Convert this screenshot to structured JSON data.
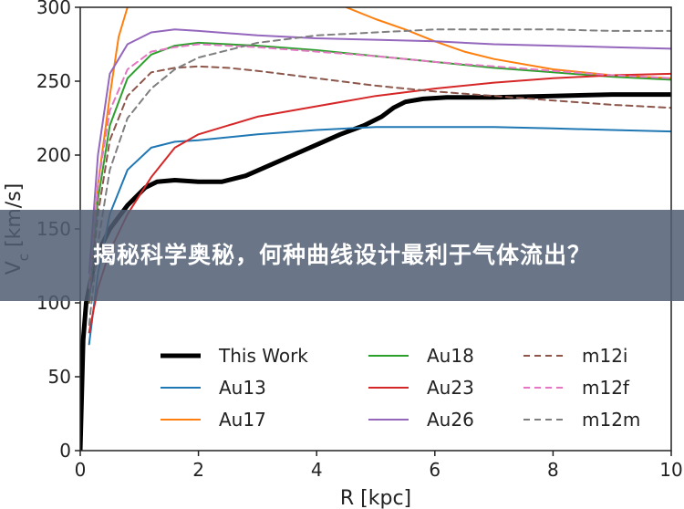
{
  "banner": {
    "title": "揭秘科学奥秘，何种曲线设计最利于气体流出？"
  },
  "chart_data": {
    "type": "line",
    "xlabel": "R [kpc]",
    "ylabel": "V_c [km/s]",
    "xlim": [
      0,
      10
    ],
    "ylim": [
      0,
      300
    ],
    "xticks": [
      0,
      2,
      4,
      6,
      8,
      10
    ],
    "yticks": [
      0,
      50,
      100,
      150,
      200,
      250,
      300
    ],
    "legend_placement": "lower-right",
    "series": [
      {
        "name": "This Work",
        "color": "#000000",
        "dash": "solid",
        "width": 5,
        "points": [
          [
            0,
            0
          ],
          [
            0.05,
            75
          ],
          [
            0.1,
            100
          ],
          [
            0.2,
            120
          ],
          [
            0.35,
            138
          ],
          [
            0.5,
            150
          ],
          [
            0.8,
            166
          ],
          [
            1.1,
            178
          ],
          [
            1.3,
            182
          ],
          [
            1.6,
            183
          ],
          [
            2.0,
            182
          ],
          [
            2.4,
            182
          ],
          [
            2.8,
            186
          ],
          [
            3.2,
            193
          ],
          [
            3.6,
            200
          ],
          [
            4.0,
            207
          ],
          [
            4.4,
            214
          ],
          [
            4.8,
            220
          ],
          [
            5.1,
            226
          ],
          [
            5.3,
            232
          ],
          [
            5.5,
            236
          ],
          [
            5.8,
            238
          ],
          [
            6.2,
            239
          ],
          [
            7.0,
            239
          ],
          [
            8.0,
            240
          ],
          [
            9.0,
            241
          ],
          [
            10.0,
            241
          ]
        ]
      },
      {
        "name": "Au13",
        "color": "#1f77b4",
        "dash": "solid",
        "width": 2,
        "points": [
          [
            0.15,
            72
          ],
          [
            0.3,
            120
          ],
          [
            0.5,
            160
          ],
          [
            0.8,
            190
          ],
          [
            1.2,
            205
          ],
          [
            1.6,
            209
          ],
          [
            2.0,
            210
          ],
          [
            3.0,
            214
          ],
          [
            4.0,
            217
          ],
          [
            5.0,
            219
          ],
          [
            6.0,
            219
          ],
          [
            7.0,
            219
          ],
          [
            8.0,
            218
          ],
          [
            9.0,
            217
          ],
          [
            10.0,
            216
          ]
        ]
      },
      {
        "name": "Au17",
        "color": "#ff7f0e",
        "dash": "solid",
        "width": 2,
        "points": [
          [
            0.15,
            110
          ],
          [
            0.3,
            180
          ],
          [
            0.5,
            240
          ],
          [
            0.65,
            280
          ],
          [
            0.8,
            300
          ]
        ],
        "points_b": [
          [
            4.5,
            300
          ],
          [
            5.0,
            292
          ],
          [
            5.5,
            285
          ],
          [
            6.0,
            277
          ],
          [
            6.5,
            270
          ],
          [
            7.0,
            265
          ],
          [
            8.0,
            258
          ],
          [
            9.0,
            254
          ],
          [
            10.0,
            252
          ]
        ]
      },
      {
        "name": "Au18",
        "color": "#2ca02c",
        "dash": "solid",
        "width": 2,
        "points": [
          [
            0.15,
            100
          ],
          [
            0.3,
            170
          ],
          [
            0.5,
            220
          ],
          [
            0.8,
            252
          ],
          [
            1.2,
            268
          ],
          [
            1.6,
            274
          ],
          [
            2.0,
            276
          ],
          [
            3.0,
            274
          ],
          [
            4.0,
            271
          ],
          [
            5.0,
            267
          ],
          [
            6.0,
            263
          ],
          [
            7.0,
            259
          ],
          [
            8.0,
            256
          ],
          [
            9.0,
            253
          ],
          [
            10.0,
            251
          ]
        ]
      },
      {
        "name": "Au23",
        "color": "#d62728",
        "dash": "solid",
        "width": 2,
        "points": [
          [
            0.15,
            80
          ],
          [
            0.3,
            110
          ],
          [
            0.5,
            135
          ],
          [
            0.8,
            160
          ],
          [
            1.2,
            185
          ],
          [
            1.6,
            205
          ],
          [
            2.0,
            214
          ],
          [
            2.5,
            220
          ],
          [
            3.0,
            226
          ],
          [
            4.0,
            233
          ],
          [
            5.0,
            240
          ],
          [
            6.0,
            245
          ],
          [
            7.0,
            249
          ],
          [
            8.0,
            252
          ],
          [
            9.0,
            254
          ],
          [
            10.0,
            255
          ]
        ]
      },
      {
        "name": "Au26",
        "color": "#9467bd",
        "dash": "solid",
        "width": 2,
        "points": [
          [
            0.15,
            120
          ],
          [
            0.3,
            200
          ],
          [
            0.5,
            255
          ],
          [
            0.8,
            275
          ],
          [
            1.2,
            283
          ],
          [
            1.6,
            285
          ],
          [
            2.0,
            284
          ],
          [
            3.0,
            281
          ],
          [
            4.0,
            279
          ],
          [
            5.0,
            278
          ],
          [
            6.0,
            277
          ],
          [
            7.0,
            275
          ],
          [
            8.0,
            274
          ],
          [
            9.0,
            273
          ],
          [
            10.0,
            272
          ]
        ]
      },
      {
        "name": "m12i",
        "color": "#8c564b",
        "dash": "dashed",
        "width": 2,
        "points": [
          [
            0.15,
            100
          ],
          [
            0.3,
            160
          ],
          [
            0.5,
            210
          ],
          [
            0.8,
            240
          ],
          [
            1.2,
            256
          ],
          [
            1.6,
            259
          ],
          [
            2.0,
            260
          ],
          [
            2.5,
            259
          ],
          [
            3.0,
            257
          ],
          [
            4.0,
            252
          ],
          [
            5.0,
            247
          ],
          [
            6.0,
            243
          ],
          [
            7.0,
            240
          ],
          [
            8.0,
            237
          ],
          [
            9.0,
            234
          ],
          [
            10.0,
            232
          ]
        ]
      },
      {
        "name": "m12f",
        "color": "#e377c2",
        "dash": "dashed",
        "width": 2,
        "points": [
          [
            0.15,
            110
          ],
          [
            0.3,
            180
          ],
          [
            0.5,
            230
          ],
          [
            0.8,
            258
          ],
          [
            1.2,
            270
          ],
          [
            1.6,
            273
          ],
          [
            2.0,
            275
          ],
          [
            3.0,
            273
          ],
          [
            4.0,
            270
          ],
          [
            5.0,
            267
          ],
          [
            6.0,
            263
          ],
          [
            7.0,
            260
          ],
          [
            8.0,
            257
          ],
          [
            9.0,
            254
          ],
          [
            10.0,
            252
          ]
        ]
      },
      {
        "name": "m12m",
        "color": "#7f7f7f",
        "dash": "dashed",
        "width": 2,
        "points": [
          [
            0.15,
            85
          ],
          [
            0.3,
            140
          ],
          [
            0.5,
            190
          ],
          [
            0.8,
            225
          ],
          [
            1.2,
            245
          ],
          [
            1.6,
            258
          ],
          [
            2.0,
            266
          ],
          [
            3.0,
            276
          ],
          [
            4.0,
            281
          ],
          [
            5.0,
            283
          ],
          [
            6.0,
            285
          ],
          [
            7.0,
            285
          ],
          [
            8.0,
            285
          ],
          [
            9.0,
            284
          ],
          [
            10.0,
            284
          ]
        ]
      }
    ]
  }
}
